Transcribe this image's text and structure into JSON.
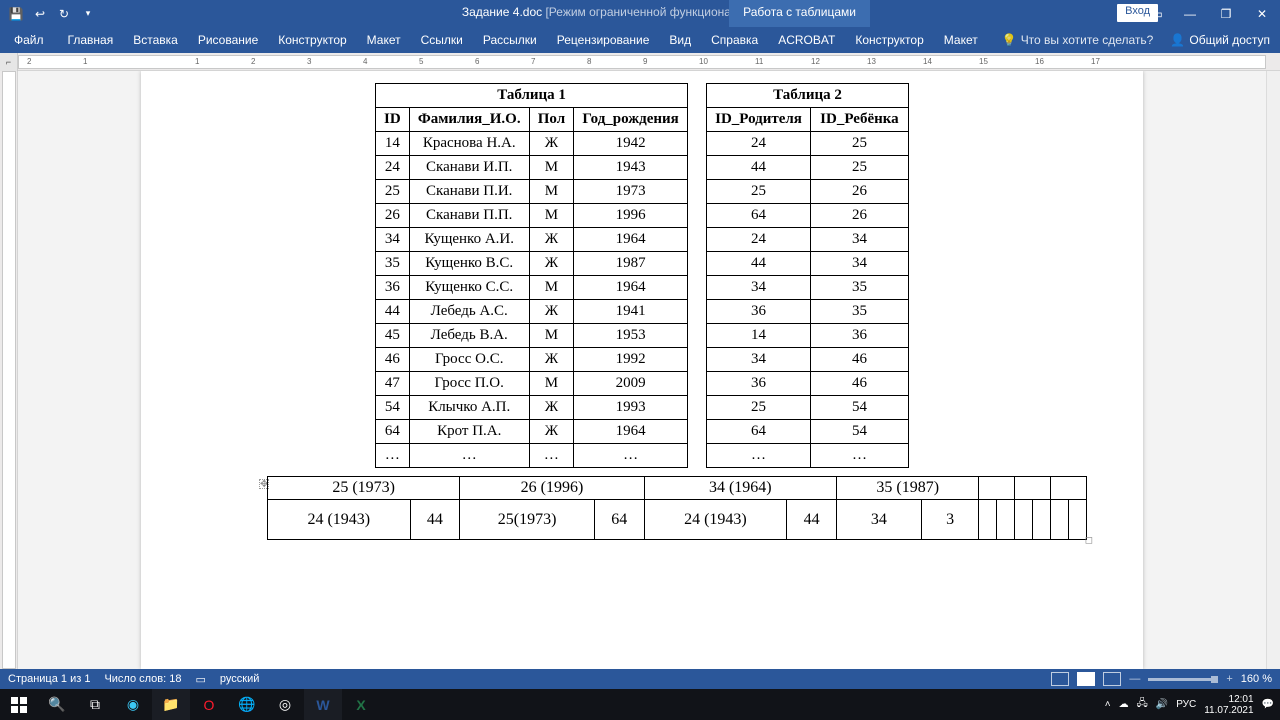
{
  "window": {
    "doc_name": "Задание 4.doc",
    "mode": "[Режим ограниченной функциональности]",
    "app": "Word",
    "context_tab": "Работа с таблицами",
    "login": "Вход"
  },
  "ribbon": {
    "tabs": [
      "Файл",
      "Главная",
      "Вставка",
      "Рисование",
      "Конструктор",
      "Макет",
      "Ссылки",
      "Рассылки",
      "Рецензирование",
      "Вид",
      "Справка",
      "ACROBAT",
      "Конструктор",
      "Макет"
    ],
    "tell_me": "Что вы хотите сделать?",
    "share": "Общий доступ"
  },
  "ruler_marks": [
    "2",
    "1",
    "",
    "1",
    "2",
    "3",
    "4",
    "5",
    "6",
    "7",
    "8",
    "9",
    "10",
    "11",
    "12",
    "13",
    "14",
    "15",
    "16",
    "17"
  ],
  "table1": {
    "title": "Таблица 1",
    "headers": [
      "ID",
      "Фамилия_И.О.",
      "Пол",
      "Год_рождения"
    ],
    "rows": [
      [
        "14",
        "Краснова Н.А.",
        "Ж",
        "1942"
      ],
      [
        "24",
        "Сканави И.П.",
        "М",
        "1943"
      ],
      [
        "25",
        "Сканави П.И.",
        "М",
        "1973"
      ],
      [
        "26",
        "Сканави П.П.",
        "М",
        "1996"
      ],
      [
        "34",
        "Кущенко А.И.",
        "Ж",
        "1964"
      ],
      [
        "35",
        "Кущенко В.С.",
        "Ж",
        "1987"
      ],
      [
        "36",
        "Кущенко С.С.",
        "М",
        "1964"
      ],
      [
        "44",
        "Лебедь А.С.",
        "Ж",
        "1941"
      ],
      [
        "45",
        "Лебедь В.А.",
        "М",
        "1953"
      ],
      [
        "46",
        "Гросс О.С.",
        "Ж",
        "1992"
      ],
      [
        "47",
        "Гросс П.О.",
        "М",
        "2009"
      ],
      [
        "54",
        "Клычко А.П.",
        "Ж",
        "1993"
      ],
      [
        "64",
        "Крот П.А.",
        "Ж",
        "1964"
      ],
      [
        "…",
        "…",
        "…",
        "…"
      ]
    ]
  },
  "table2": {
    "title": "Таблица 2",
    "headers": [
      "ID_Родителя",
      "ID_Ребёнка"
    ],
    "rows": [
      [
        "24",
        "25"
      ],
      [
        "44",
        "25"
      ],
      [
        "25",
        "26"
      ],
      [
        "64",
        "26"
      ],
      [
        "24",
        "34"
      ],
      [
        "44",
        "34"
      ],
      [
        "34",
        "35"
      ],
      [
        "36",
        "35"
      ],
      [
        "14",
        "36"
      ],
      [
        "34",
        "46"
      ],
      [
        "36",
        "46"
      ],
      [
        "25",
        "54"
      ],
      [
        "64",
        "54"
      ],
      [
        "…",
        "…"
      ]
    ]
  },
  "analysis": {
    "row1": [
      "25 (1973)",
      "26 (1996)",
      "34 (1964)",
      "35 (1987)",
      "",
      "",
      ""
    ],
    "row2": [
      "24 (1943)",
      "44",
      "25(1973)",
      "64",
      "24 (1943)",
      "44",
      "34",
      "3",
      "",
      "",
      "",
      "",
      "",
      ""
    ]
  },
  "status": {
    "page": "Страница 1 из 1",
    "words": "Число слов: 18",
    "lang": "русский",
    "zoom": "160 %"
  },
  "tray": {
    "ime": "РУС",
    "time": "12:01",
    "date": "11.07.2021"
  }
}
